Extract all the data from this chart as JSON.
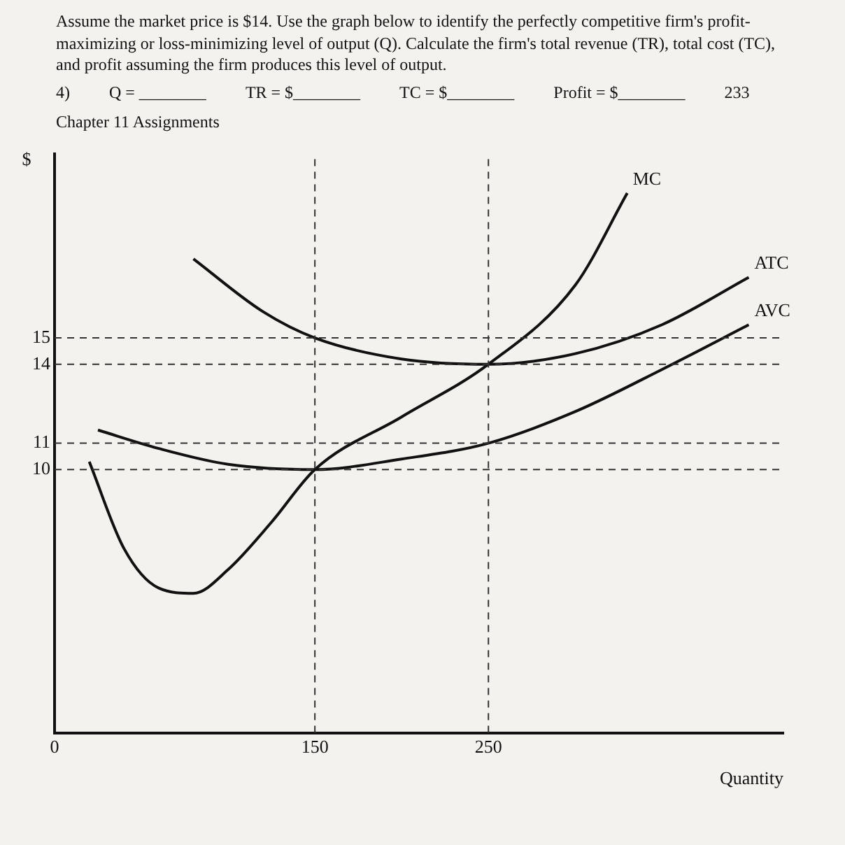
{
  "chart_data": {
    "type": "line",
    "title": "Assume the market price is $14. Use the graph below to identify the perfectly competitive firm's profit-maximizing or loss-minimizing level of output (Q). Calculate the firm's total revenue (TR), total cost (TC), and profit assuming the firm produces this level of output.",
    "xlabel": "Quantity",
    "ylabel": "$",
    "annotations": [
      "4)",
      "Q = ________",
      "TR = $________",
      "TC = $________",
      "Profit = $________",
      "233",
      "Chapter 11 Assignments"
    ],
    "xlim": [
      0,
      420
    ],
    "xticks": [
      0,
      150,
      250
    ],
    "ylim": [
      0,
      22
    ],
    "yticks": [
      10,
      11,
      14,
      15
    ],
    "grid": false,
    "legend": false,
    "marker": "none",
    "line_style": "solid",
    "ref_lines": [
      {
        "axis": "y",
        "value": 15,
        "line_style": "dashed"
      },
      {
        "axis": "y",
        "value": 14,
        "line_style": "dashed"
      },
      {
        "axis": "y",
        "value": 11,
        "line_style": "dashed"
      },
      {
        "axis": "y",
        "value": 10,
        "line_style": "dashed"
      },
      {
        "axis": "x",
        "value": 150,
        "line_style": "dashed"
      },
      {
        "axis": "x",
        "value": 250,
        "line_style": "dashed"
      }
    ],
    "series": [
      {
        "name": "MC",
        "color": "#111111",
        "x": [
          20,
          40,
          60,
          80,
          100,
          125,
          150,
          200,
          250,
          300,
          330
        ],
        "values": [
          10.3,
          7,
          5.5,
          5.3,
          6.2,
          8,
          10,
          12,
          14,
          17,
          20.5
        ]
      },
      {
        "name": "ATC",
        "color": "#111111",
        "x": [
          80,
          120,
          150,
          200,
          250,
          300,
          350,
          400
        ],
        "values": [
          18,
          16,
          15,
          14.2,
          14,
          14.4,
          15.5,
          17.3
        ]
      },
      {
        "name": "AVC",
        "color": "#111111",
        "x": [
          25,
          60,
          100,
          150,
          200,
          250,
          300,
          350,
          400
        ],
        "values": [
          11.5,
          10.8,
          10.2,
          10,
          10.4,
          11,
          12.2,
          13.8,
          15.5
        ]
      }
    ]
  }
}
